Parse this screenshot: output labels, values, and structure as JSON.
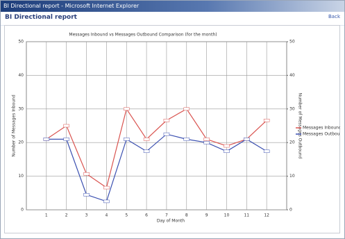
{
  "window": {
    "title": "BI Directional report - Microsoft Internet Explorer"
  },
  "header": {
    "title": "BI Directional report",
    "link": "Back"
  },
  "chart_data": {
    "type": "line",
    "title": "Messages Inbound vs Messages Outbound Comparison (for the month)",
    "x_label": "Day of Month",
    "y_label": "Number of Messages Inbound",
    "y2_label": "Number of Messages Outbound",
    "categories": [
      "1",
      "2",
      "3",
      "4",
      "5",
      "6",
      "7",
      "8",
      "9",
      "10",
      "11",
      "12"
    ],
    "series": [
      {
        "name": "Messages Inbound",
        "color": "#d9534f",
        "values": [
          21,
          25,
          10.7,
          6.6,
          30,
          21,
          26.6,
          30,
          21,
          19,
          21,
          26.6
        ]
      },
      {
        "name": "Messages Outbound",
        "color": "#3a4fb0",
        "axis": "y2",
        "values": [
          21,
          21,
          4.5,
          2.5,
          21,
          17.4,
          22.5,
          21,
          20,
          17.4,
          21,
          17.4
        ]
      }
    ],
    "ylim": [
      0,
      50
    ],
    "yticks": [
      0,
      10,
      20,
      30,
      40,
      50
    ],
    "y2lim": [
      0,
      50
    ],
    "y2ticks": [
      0,
      10,
      20,
      30,
      40,
      50
    ],
    "grid": true,
    "legend": "right"
  }
}
